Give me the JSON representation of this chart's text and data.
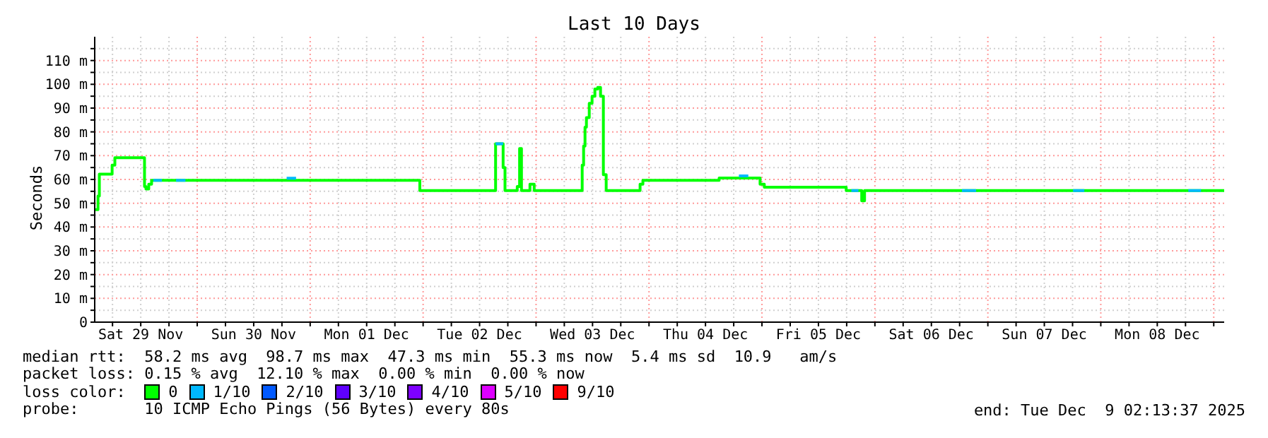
{
  "chart_data": {
    "type": "step",
    "title": "Last 10 Days",
    "ylabel": "Seconds",
    "legend_title": "loss color:",
    "legend": "bottom",
    "grid": true,
    "xlim": [
      "2025-11-29T02:13",
      "2025-12-09T02:13"
    ],
    "xticks": [
      {
        "value": "2025-11-29T06:00",
        "label": null
      },
      {
        "value": "2025-11-29T12:00",
        "label": "Sat 29 Nov"
      },
      {
        "value": "2025-11-29T18:00",
        "label": null
      },
      {
        "value": "2025-11-30T00:00",
        "label": null
      },
      {
        "value": "2025-11-30T06:00",
        "label": null
      },
      {
        "value": "2025-11-30T12:00",
        "label": "Sun 30 Nov"
      },
      {
        "value": "2025-11-30T18:00",
        "label": null
      },
      {
        "value": "2025-12-01T00:00",
        "label": null
      },
      {
        "value": "2025-12-01T06:00",
        "label": null
      },
      {
        "value": "2025-12-01T12:00",
        "label": "Mon 01 Dec"
      },
      {
        "value": "2025-12-01T18:00",
        "label": null
      },
      {
        "value": "2025-12-02T00:00",
        "label": null
      },
      {
        "value": "2025-12-02T06:00",
        "label": null
      },
      {
        "value": "2025-12-02T12:00",
        "label": "Tue 02 Dec"
      },
      {
        "value": "2025-12-02T18:00",
        "label": null
      },
      {
        "value": "2025-12-03T00:00",
        "label": null
      },
      {
        "value": "2025-12-03T06:00",
        "label": null
      },
      {
        "value": "2025-12-03T12:00",
        "label": "Wed 03 Dec"
      },
      {
        "value": "2025-12-03T18:00",
        "label": null
      },
      {
        "value": "2025-12-04T00:00",
        "label": null
      },
      {
        "value": "2025-12-04T06:00",
        "label": null
      },
      {
        "value": "2025-12-04T12:00",
        "label": "Thu 04 Dec"
      },
      {
        "value": "2025-12-04T18:00",
        "label": null
      },
      {
        "value": "2025-12-05T00:00",
        "label": null
      },
      {
        "value": "2025-12-05T06:00",
        "label": null
      },
      {
        "value": "2025-12-05T12:00",
        "label": "Fri 05 Dec"
      },
      {
        "value": "2025-12-05T18:00",
        "label": null
      },
      {
        "value": "2025-12-06T00:00",
        "label": null
      },
      {
        "value": "2025-12-06T06:00",
        "label": null
      },
      {
        "value": "2025-12-06T12:00",
        "label": "Sat 06 Dec"
      },
      {
        "value": "2025-12-06T18:00",
        "label": null
      },
      {
        "value": "2025-12-07T00:00",
        "label": null
      },
      {
        "value": "2025-12-07T06:00",
        "label": null
      },
      {
        "value": "2025-12-07T12:00",
        "label": "Sun 07 Dec"
      },
      {
        "value": "2025-12-07T18:00",
        "label": null
      },
      {
        "value": "2025-12-08T00:00",
        "label": null
      },
      {
        "value": "2025-12-08T06:00",
        "label": null
      },
      {
        "value": "2025-12-08T12:00",
        "label": "Mon 08 Dec"
      },
      {
        "value": "2025-12-08T18:00",
        "label": null
      },
      {
        "value": "2025-12-09T00:00",
        "label": null
      }
    ],
    "ylim": [
      0,
      120
    ],
    "yticks": [
      0,
      {
        "value": 5,
        "label": null
      },
      {
        "value": 10,
        "label": "10 m"
      },
      {
        "value": 15,
        "label": null
      },
      {
        "value": 20,
        "label": "20 m"
      },
      {
        "value": 25,
        "label": null
      },
      {
        "value": 30,
        "label": "30 m"
      },
      {
        "value": 35,
        "label": null
      },
      {
        "value": 40,
        "label": "40 m"
      },
      {
        "value": 45,
        "label": null
      },
      {
        "value": 50,
        "label": "50 m"
      },
      {
        "value": 55,
        "label": null
      },
      {
        "value": 60,
        "label": "60 m"
      },
      {
        "value": 65,
        "label": null
      },
      {
        "value": 70,
        "label": "70 m"
      },
      {
        "value": 75,
        "label": null
      },
      {
        "value": 80,
        "label": "80 m"
      },
      {
        "value": 85,
        "label": null
      },
      {
        "value": 90,
        "label": "90 m"
      },
      {
        "value": 95,
        "label": null
      },
      {
        "value": 100,
        "label": "100 m"
      },
      {
        "value": 105,
        "label": null
      },
      {
        "value": 110,
        "label": "110 m"
      },
      {
        "value": 115,
        "label": null
      }
    ],
    "series": [
      {
        "name": "0",
        "color": "#00ff00",
        "x": [
          "2025-11-29T02:13",
          "2025-11-29T02:55",
          "2025-11-29T03:12",
          "2025-11-29T05:55",
          "2025-11-29T06:30",
          "2025-11-29T12:48",
          "2025-11-29T13:06",
          "2025-11-29T13:42",
          "2025-11-29T14:18",
          "2025-11-29T14:54",
          "2025-12-01T23:18",
          "2025-12-02T15:24",
          "2025-12-02T17:00",
          "2025-12-02T17:24",
          "2025-12-02T20:00",
          "2025-12-02T20:30",
          "2025-12-02T20:54",
          "2025-12-02T22:42",
          "2025-12-02T23:36",
          "2025-12-03T09:48",
          "2025-12-03T10:06",
          "2025-12-03T10:24",
          "2025-12-03T10:42",
          "2025-12-03T11:18",
          "2025-12-03T11:54",
          "2025-12-03T12:30",
          "2025-12-03T13:06",
          "2025-12-03T13:42",
          "2025-12-03T14:18",
          "2025-12-03T14:54",
          "2025-12-03T15:30",
          "2025-12-03T22:06",
          "2025-12-03T22:42",
          "2025-12-04T14:54",
          "2025-12-04T23:36",
          "2025-12-05T00:30",
          "2025-12-05T17:54",
          "2025-12-05T21:12",
          "2025-12-05T21:48",
          "2025-12-09T02:13"
        ],
        "values": [
          47.3,
          53,
          62.2,
          66,
          69.1,
          57,
          56,
          58,
          59.6,
          59.6,
          55.3,
          75,
          65,
          55.3,
          57,
          73,
          55.3,
          58,
          55.3,
          66,
          74,
          82,
          86,
          92,
          95,
          98,
          98.7,
          95,
          62,
          55.3,
          55.3,
          58,
          59.6,
          60.6,
          58,
          56.7,
          55.3,
          51,
          55.3,
          55.3
        ]
      },
      {
        "name": "1/10",
        "color": "#00b8ff",
        "x": [
          "2025-11-29T14:42",
          "2025-11-29T16:30",
          "2025-11-29T16:40",
          "2025-11-29T19:30",
          "2025-11-29T21:30",
          "2025-11-29T21:40",
          "2025-11-30T19:00",
          "2025-11-30T21:00",
          "2025-11-30T21:10",
          "2025-12-02T15:24",
          "2025-12-02T17:00",
          "2025-12-02T17:10",
          "2025-12-04T19:06",
          "2025-12-04T21:06",
          "2025-12-04T21:10",
          "2025-12-05T19:00",
          "2025-12-05T20:30",
          "2025-12-05T20:40",
          "2025-12-06T18:30",
          "2025-12-06T21:30",
          "2025-12-06T21:40",
          "2025-12-07T18:06",
          "2025-12-07T20:30",
          "2025-12-07T20:40",
          "2025-12-08T18:36",
          "2025-12-08T21:18"
        ],
        "values": [
          59.6,
          59.6,
          null,
          59.6,
          59.6,
          null,
          60.5,
          60.5,
          null,
          75,
          75,
          null,
          61.5,
          61.5,
          null,
          55.3,
          55.3,
          null,
          55.3,
          55.3,
          null,
          55.3,
          55.3,
          null,
          55.3,
          55.3
        ]
      },
      {
        "name": "2/10",
        "color": "#0059ff"
      },
      {
        "name": "3/10",
        "color": "#5e00ff"
      },
      {
        "name": "4/10",
        "color": "#7e00ff"
      },
      {
        "name": "5/10",
        "color": "#dd00ff"
      },
      {
        "name": "9/10",
        "color": "#ff0000"
      }
    ],
    "annotations": [
      "median rtt:  58.2 ms avg  98.7 ms max  47.3 ms min  55.3 ms now  5.4 ms sd  10.9   am/s",
      "packet loss: 0.15 % avg  12.10 % max  0.00 % min  0.00 % now",
      "probe:       10 ICMP Echo Pings (56 Bytes) every 80s",
      "end: Tue Dec  9 02:13:37 2025"
    ]
  }
}
